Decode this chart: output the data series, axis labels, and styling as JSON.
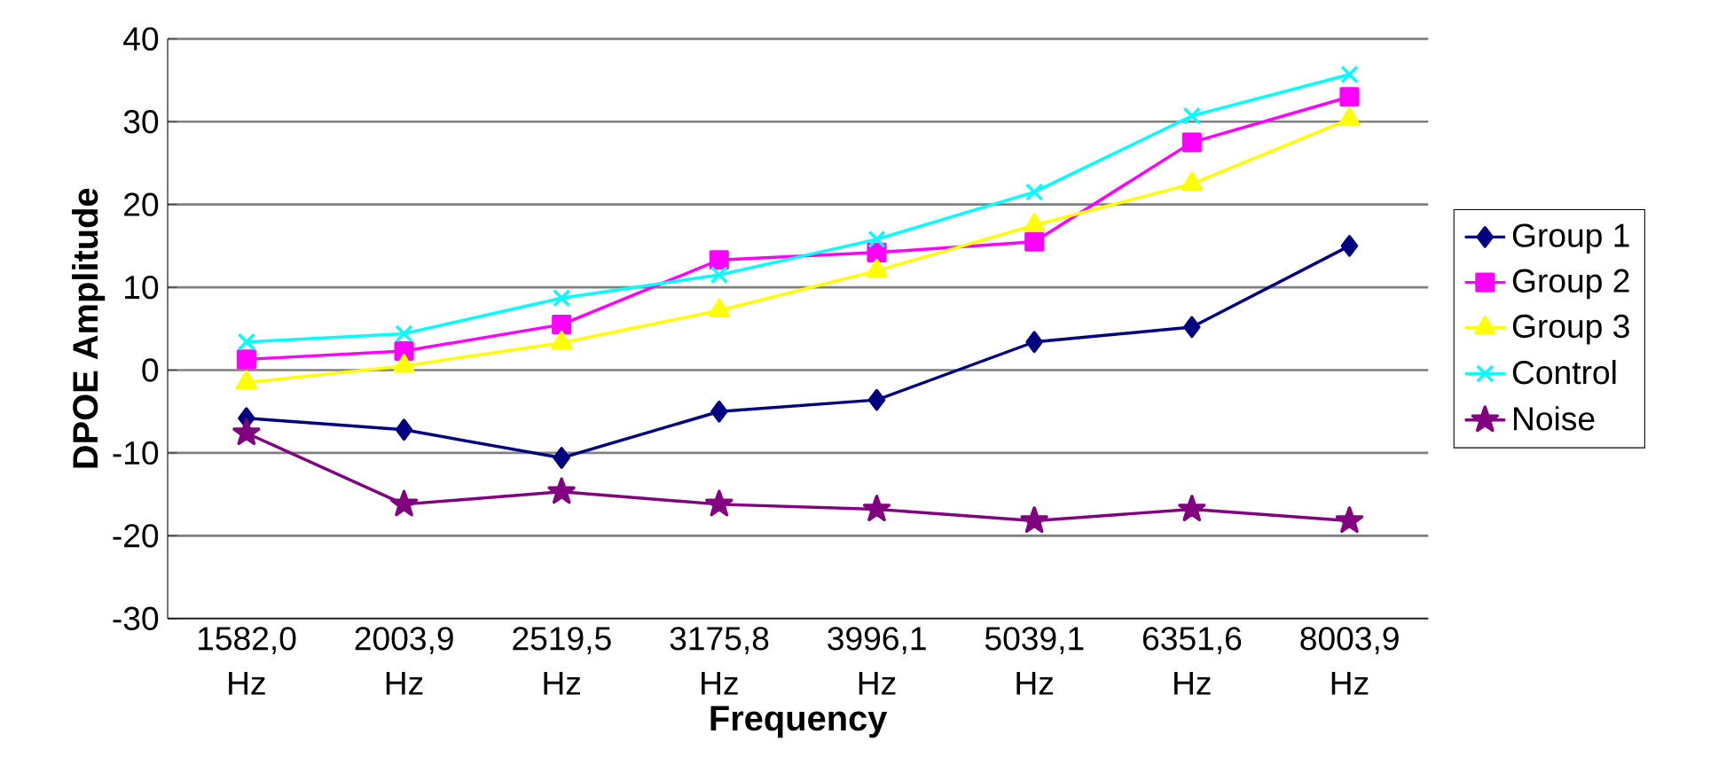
{
  "chart_data": {
    "type": "line",
    "xlabel": "Frequency",
    "ylabel": "DPOE Amplitude",
    "categories": [
      "1582,0 Hz",
      "2003,9 Hz",
      "2519,5 Hz",
      "3175,8 Hz",
      "3996,1 Hz",
      "5039,1 Hz",
      "6351,6 Hz",
      "8003,9 Hz"
    ],
    "ylim": [
      -30,
      40
    ],
    "yticks": [
      -30,
      -20,
      -10,
      0,
      10,
      20,
      30,
      40
    ],
    "grid": "y",
    "legend": "right",
    "series": [
      {
        "name": "Group 1",
        "color": "#000080",
        "marker": "diamond",
        "values": [
          -5.8,
          -7.2,
          -10.6,
          -5,
          -3.6,
          3.4,
          5.2,
          15
        ]
      },
      {
        "name": "Group 2",
        "color": "#ff00ff",
        "marker": "square",
        "values": [
          1.3,
          2.3,
          5.5,
          13.3,
          14.2,
          15.5,
          27.5,
          33
        ]
      },
      {
        "name": "Group 3",
        "color": "#ffff00",
        "marker": "triangle",
        "values": [
          -1.5,
          0.5,
          3.3,
          7.2,
          12,
          17.5,
          22.5,
          30.3
        ]
      },
      {
        "name": "Control",
        "color": "#00ffff",
        "marker": "cross",
        "values": [
          3.4,
          4.4,
          8.7,
          11.5,
          15.8,
          21.5,
          30.7,
          35.7
        ]
      },
      {
        "name": "Noise",
        "color": "#800080",
        "marker": "star",
        "values": [
          -7.6,
          -16.2,
          -14.7,
          -16.2,
          -16.8,
          -18.2,
          -16.8,
          -18.2
        ]
      }
    ]
  }
}
